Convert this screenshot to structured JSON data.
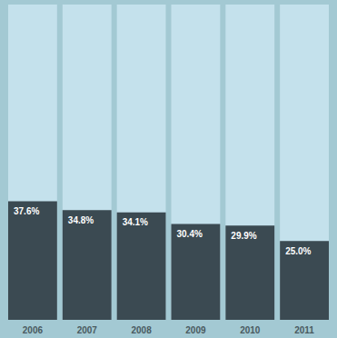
{
  "chart_data": {
    "type": "bar",
    "categories": [
      "2006",
      "2007",
      "2008",
      "2009",
      "2010",
      "2011"
    ],
    "values": [
      37.6,
      34.8,
      34.1,
      30.4,
      29.9,
      25.0
    ],
    "value_labels": [
      "37.6%",
      "34.8%",
      "34.1%",
      "30.4%",
      "29.9%",
      "25.0%"
    ],
    "color": "#3b4a52",
    "ylim": [
      0,
      100
    ],
    "data_labels": true,
    "tick_labels": "x"
  }
}
